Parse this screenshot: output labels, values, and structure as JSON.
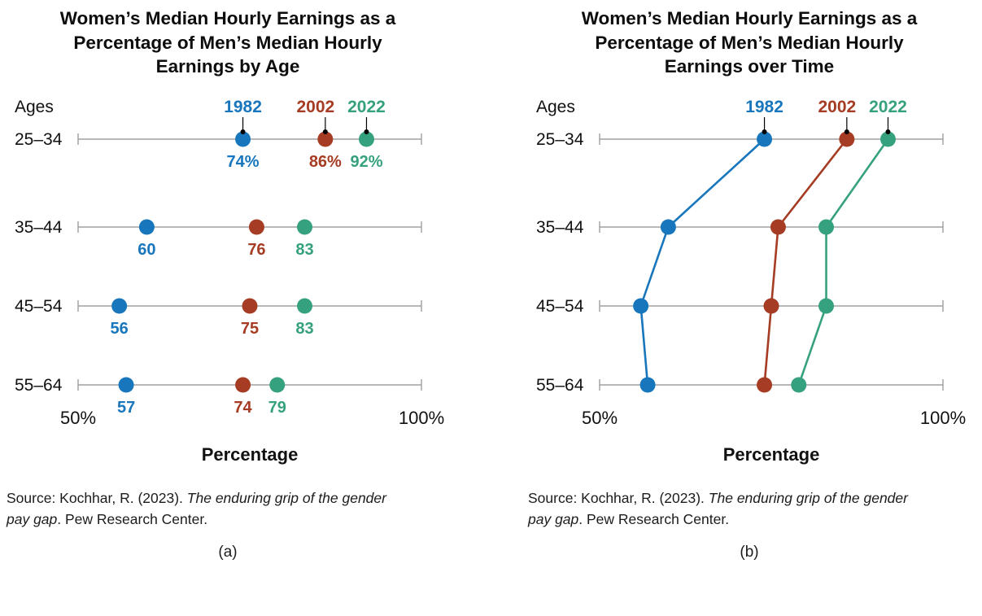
{
  "colors": {
    "axis_line": "#a0a0a0",
    "text": "#111111",
    "leader": "#000000",
    "year_1982": "#1876bc",
    "year_2002": "#a53c23",
    "year_2022": "#36a17e"
  },
  "chart_data": [
    {
      "type": "scatter",
      "variant": "dot-plot",
      "title": "Women’s Median Hourly Earnings as a Percentage of Men’s Median Hourly Earnings by Age",
      "caption": "(a)",
      "ages_label": "Ages",
      "categories": [
        "25–34",
        "35–44",
        "45–54",
        "55–64"
      ],
      "series": [
        {
          "name": "1982",
          "color": "#1876bc",
          "values": [
            74,
            60,
            56,
            57
          ]
        },
        {
          "name": "2002",
          "color": "#a53c23",
          "values": [
            86,
            76,
            75,
            74
          ]
        },
        {
          "name": "2022",
          "color": "#36a17e",
          "values": [
            92,
            83,
            83,
            79
          ]
        }
      ],
      "xlim": [
        50,
        100
      ],
      "x_tick_labels": [
        "50%",
        "100%"
      ],
      "xlabel": "Percentage",
      "show_value_labels": true,
      "value_suffix_first_row": "%",
      "connect_series": false,
      "legend_position": "top",
      "grid": false,
      "source": {
        "prefix": "Source: Kochhar, R. (2023). ",
        "italic": "The enduring grip of the gender pay gap",
        "suffix": ". Pew Research Center."
      }
    },
    {
      "type": "scatter",
      "variant": "dot-plot-connected",
      "title": "Women’s Median Hourly Earnings as a Percentage of Men’s Median Hourly Earnings over Time",
      "caption": "(b)",
      "ages_label": "Ages",
      "categories": [
        "25–34",
        "35–44",
        "45–54",
        "55–64"
      ],
      "series": [
        {
          "name": "1982",
          "color": "#1876bc",
          "values": [
            74,
            60,
            56,
            57
          ]
        },
        {
          "name": "2002",
          "color": "#a53c23",
          "values": [
            86,
            76,
            75,
            74
          ]
        },
        {
          "name": "2022",
          "color": "#36a17e",
          "values": [
            92,
            83,
            83,
            79
          ]
        }
      ],
      "xlim": [
        50,
        100
      ],
      "x_tick_labels": [
        "50%",
        "100%"
      ],
      "xlabel": "Percentage",
      "show_value_labels": false,
      "value_suffix_first_row": "",
      "connect_series": true,
      "legend_position": "top",
      "grid": false,
      "source": {
        "prefix": "Source: Kochhar, R. (2023). ",
        "italic": "The enduring grip of the gender pay gap",
        "suffix": ". Pew Research Center."
      }
    }
  ]
}
